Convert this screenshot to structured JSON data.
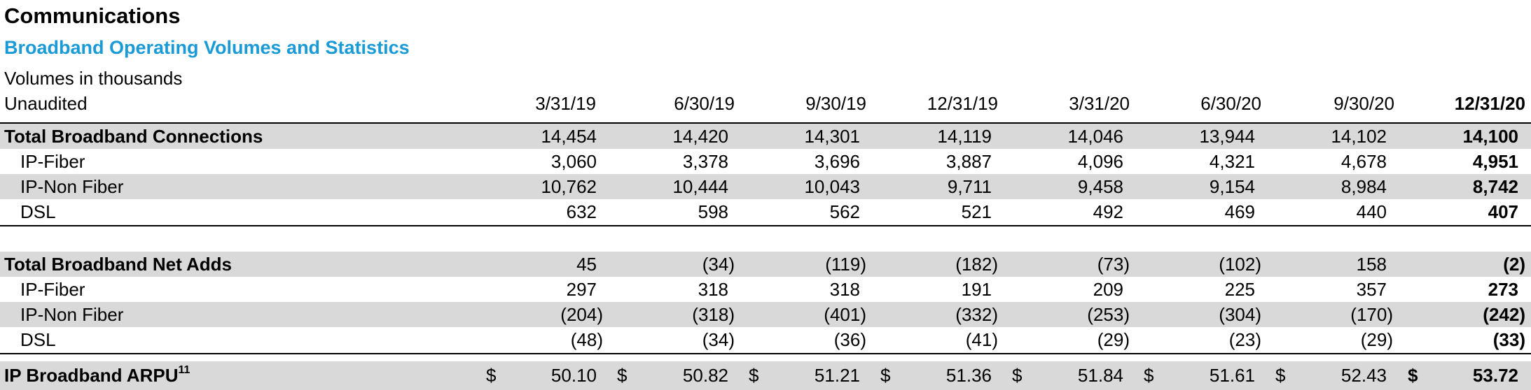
{
  "header": {
    "title": "Communications",
    "subtitle": "Broadband Operating Volumes and Statistics",
    "note1": "Volumes in thousands",
    "note2": "Unaudited"
  },
  "columns": [
    "3/31/19",
    "6/30/19",
    "9/30/19",
    "12/31/19",
    "3/31/20",
    "6/30/20",
    "9/30/20",
    "12/31/20"
  ],
  "section_connections": {
    "total": {
      "label": "Total Broadband Connections",
      "values": [
        "14,454",
        "14,420",
        "14,301",
        "14,119",
        "14,046",
        "13,944",
        "14,102",
        "14,100"
      ]
    },
    "ip_fiber": {
      "label": "IP-Fiber",
      "values": [
        "3,060",
        "3,378",
        "3,696",
        "3,887",
        "4,096",
        "4,321",
        "4,678",
        "4,951"
      ]
    },
    "ip_non_fiber": {
      "label": "IP-Non Fiber",
      "values": [
        "10,762",
        "10,444",
        "10,043",
        "9,711",
        "9,458",
        "9,154",
        "8,984",
        "8,742"
      ]
    },
    "dsl": {
      "label": "DSL",
      "values": [
        "632",
        "598",
        "562",
        "521",
        "492",
        "469",
        "440",
        "407"
      ]
    }
  },
  "section_net_adds": {
    "total": {
      "label": "Total Broadband Net Adds",
      "values": [
        "45",
        "(34)",
        "(119)",
        "(182)",
        "(73)",
        "(102)",
        "158",
        "(2)"
      ]
    },
    "ip_fiber": {
      "label": "IP-Fiber",
      "values": [
        "297",
        "318",
        "318",
        "191",
        "209",
        "225",
        "357",
        "273"
      ]
    },
    "ip_non_fiber": {
      "label": "IP-Non Fiber",
      "values": [
        "(204)",
        "(318)",
        "(401)",
        "(332)",
        "(253)",
        "(304)",
        "(170)",
        "(242)"
      ]
    },
    "dsl": {
      "label": "DSL",
      "values": [
        "(48)",
        "(34)",
        "(36)",
        "(41)",
        "(29)",
        "(23)",
        "(29)",
        "(33)"
      ]
    }
  },
  "arpu": {
    "label": "IP Broadband ARPU",
    "footnote": "11",
    "currency": "$",
    "values": [
      "50.10",
      "50.82",
      "51.21",
      "51.36",
      "51.84",
      "51.61",
      "52.43",
      "53.72"
    ]
  }
}
